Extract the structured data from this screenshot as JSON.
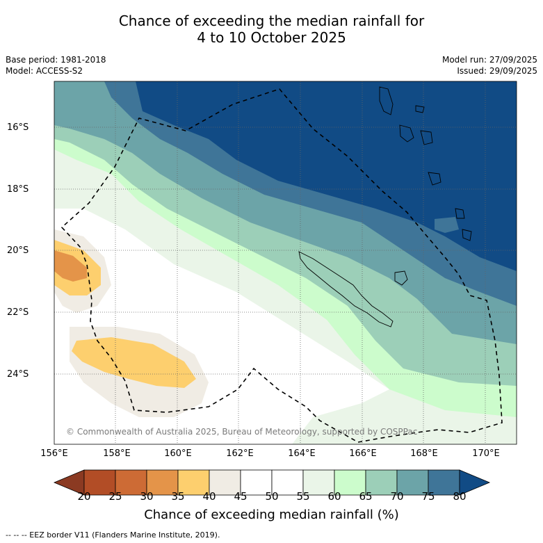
{
  "title": {
    "line1": "Chance of exceeding the median rainfall for",
    "line2": "4 to 10 October 2025"
  },
  "info_left": {
    "base_period": "Base period: 1981-2018",
    "model": "Model: ACCESS-S2"
  },
  "info_right": {
    "model_run": "Model run: 27/09/2025",
    "issued": "Issued: 29/09/2025"
  },
  "map": {
    "lat_labels": [
      "16°S",
      "18°S",
      "20°S",
      "22°S",
      "24°S"
    ],
    "lon_labels": [
      "156°E",
      "158°E",
      "160°E",
      "162°E",
      "164°E",
      "166°E",
      "168°E",
      "170°E"
    ],
    "copyright": "© Commonwealth of Australia 2025, Bureau of Meteorology, supported by COSPPac"
  },
  "colorbar": {
    "ticks": [
      "20",
      "25",
      "30",
      "35",
      "40",
      "45",
      "50",
      "55",
      "60",
      "65",
      "70",
      "75",
      "80"
    ],
    "colors": [
      "#8b3a22",
      "#b24d26",
      "#cd6b35",
      "#e49449",
      "#fdcf6e",
      "#f0ece4",
      "#ffffff",
      "#ffffff",
      "#eaf5e8",
      "#ccfccc",
      "#9ccfb8",
      "#6ca4a8",
      "#3f7598",
      "#114b85"
    ],
    "title": "Chance of exceeding median rainfall (%)"
  },
  "legend": {
    "eez": "--  --  -- EEZ border V11 (Flanders Marine Institute, 2019)."
  }
}
